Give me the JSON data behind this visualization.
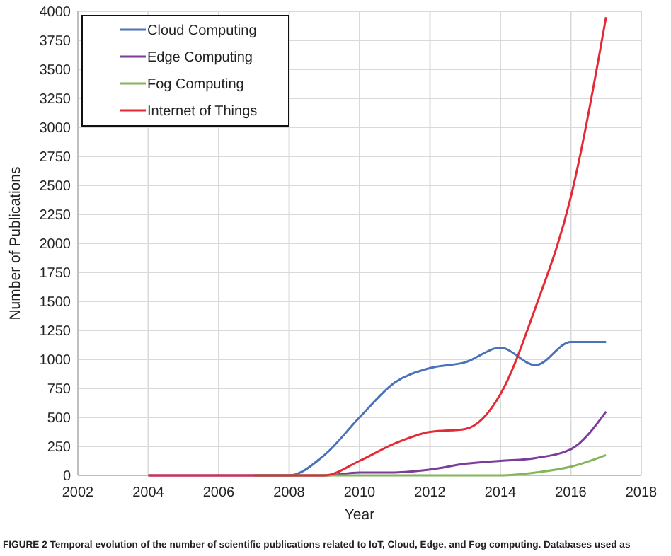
{
  "chart_data": {
    "type": "line",
    "xlabel": "Year",
    "ylabel": "Number of Publications",
    "x": [
      2004,
      2005,
      2006,
      2007,
      2008,
      2009,
      2010,
      2011,
      2012,
      2013,
      2014,
      2015,
      2016,
      2017
    ],
    "series": [
      {
        "name": "Cloud Computing",
        "color": "#4a72b8",
        "values": [
          null,
          null,
          null,
          0,
          0,
          175,
          500,
          800,
          925,
          975,
          1100,
          950,
          1150,
          1150
        ]
      },
      {
        "name": "Edge Computing",
        "color": "#7a3d9a",
        "values": [
          0,
          0,
          0,
          0,
          0,
          0,
          25,
          25,
          50,
          100,
          125,
          150,
          225,
          550
        ]
      },
      {
        "name": "Fog Computing",
        "color": "#84b55a",
        "values": [
          null,
          null,
          null,
          0,
          0,
          0,
          0,
          0,
          0,
          0,
          0,
          25,
          75,
          175
        ]
      },
      {
        "name": "Internet of Things",
        "color": "#e42b35",
        "values": [
          0,
          0,
          0,
          0,
          0,
          0,
          125,
          275,
          375,
          400,
          700,
          1450,
          2400,
          3950
        ]
      }
    ],
    "xlim": [
      2002,
      2018
    ],
    "xticks": [
      2002,
      2004,
      2006,
      2008,
      2010,
      2012,
      2014,
      2016,
      2018
    ],
    "ylim": [
      0,
      4000
    ],
    "yticks": [
      0,
      250,
      500,
      750,
      1000,
      1250,
      1500,
      1750,
      2000,
      2250,
      2500,
      2750,
      3000,
      3250,
      3500,
      3750,
      4000
    ],
    "grid": true,
    "legend": "top left",
    "marker": "none",
    "line_style": "solid",
    "annotations": [
      "FIGURE 2 Temporal evolution of the number of scientific publications related to IoT, Cloud, Edge, and Fog computing. Databases used as"
    ]
  }
}
